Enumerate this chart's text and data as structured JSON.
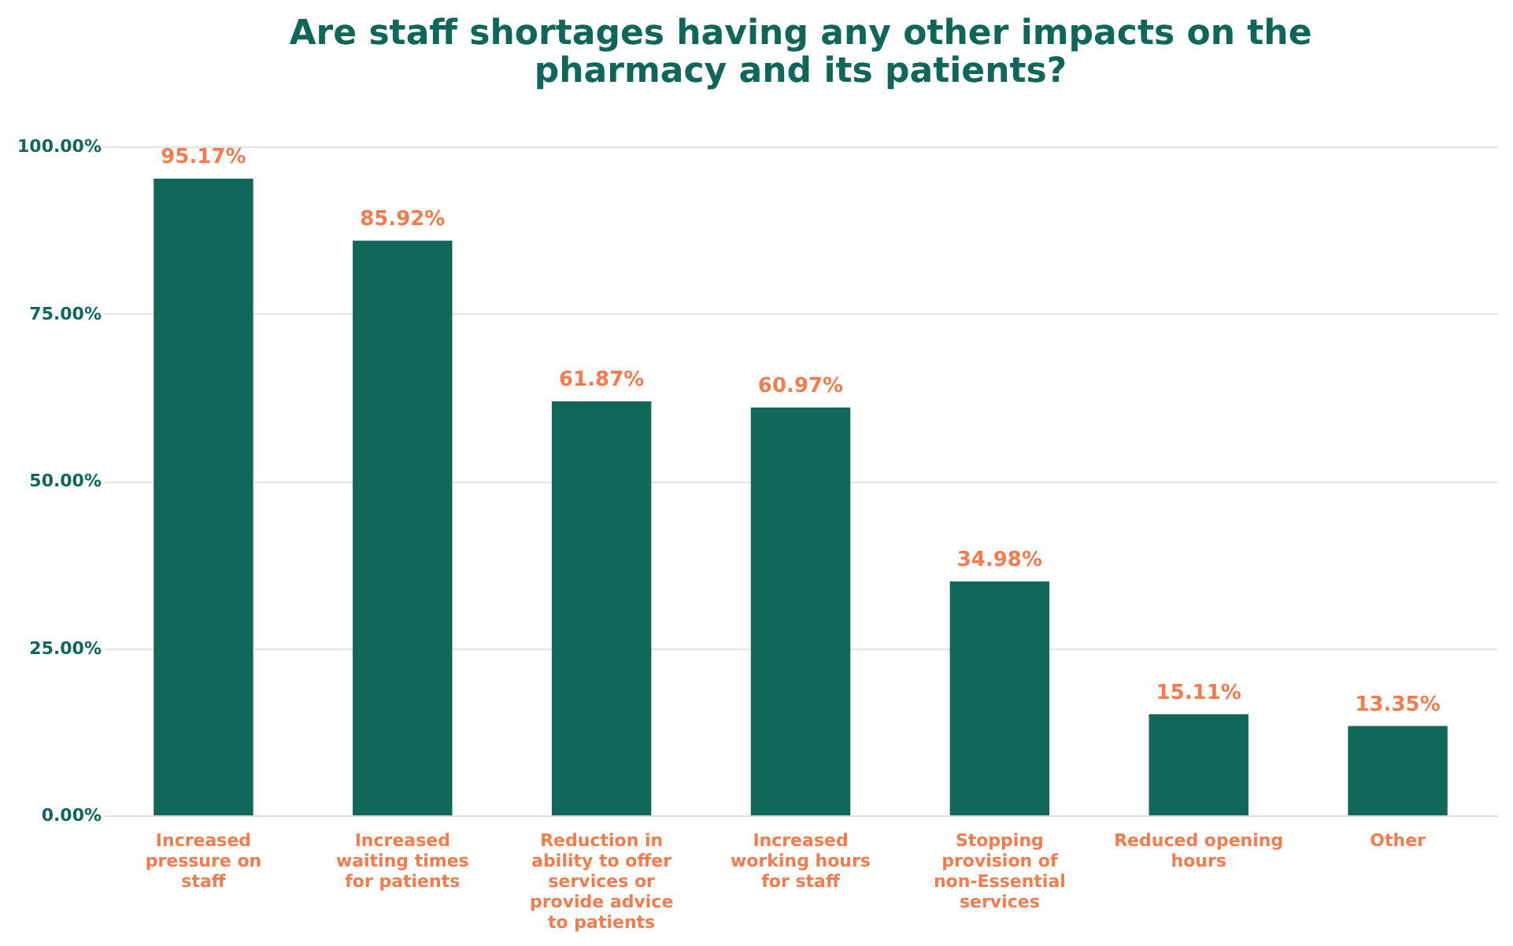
{
  "chart_data": {
    "type": "bar",
    "title": [
      "Are staff shortages having any other impacts on the",
      "pharmacy and its patients?"
    ],
    "categories": [
      "Increased pressure on staff",
      "Increased waiting times for patients",
      "Reduction in ability to offer services or provide advice to patients",
      "Increased working hours for staff",
      "Stopping provision of non-Essential services",
      "Reduced opening hours",
      "Other"
    ],
    "values": [
      95.17,
      85.92,
      61.87,
      60.97,
      34.98,
      15.11,
      13.35
    ],
    "value_labels": [
      "95.17%",
      "85.92%",
      "61.87%",
      "60.97%",
      "34.98%",
      "15.11%",
      "13.35%"
    ],
    "color": "#10675a",
    "ylim": [
      0,
      100
    ],
    "yticks": [
      {
        "value": 0,
        "label": "0.00%"
      },
      {
        "value": 25,
        "label": "25.00%"
      },
      {
        "value": 50,
        "label": "50.00%"
      },
      {
        "value": 75,
        "label": "75.00%"
      },
      {
        "value": 100,
        "label": "100.00%"
      }
    ],
    "grid": "y"
  }
}
